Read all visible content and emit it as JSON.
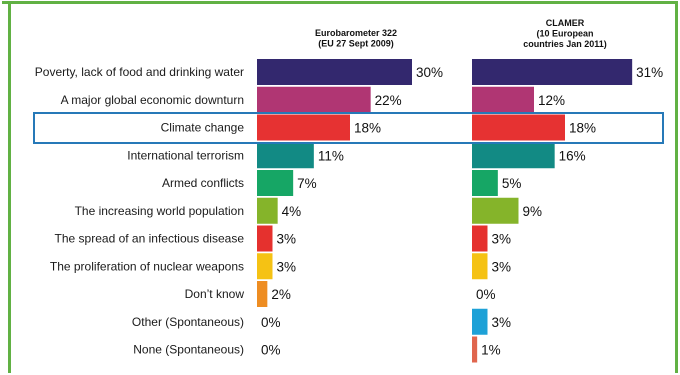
{
  "chart_data": {
    "type": "bar",
    "orientation": "horizontal",
    "categories": [
      "Poverty, lack of food and drinking water",
      "A major global economic downturn",
      "Climate change",
      "International terrorism",
      "Armed conflicts",
      "The increasing world population",
      "The spread of an infectious disease",
      "The proliferation of nuclear weapons",
      "Don’t know",
      "Other (Spontaneous)",
      "None (Spontaneous)"
    ],
    "colors": [
      "#33286e",
      "#b03673",
      "#e63232",
      "#128a84",
      "#16a665",
      "#85b42a",
      "#e5312e",
      "#f5c214",
      "#ee8d22",
      "#1da1d7",
      "#e0664e"
    ],
    "highlight_category": "Climate change",
    "highlight_color": "#2679b8",
    "frame_color": "#61b144",
    "value_suffix": "%",
    "xlim": [
      0,
      31
    ],
    "series": [
      {
        "name_lines": [
          "Eurobarometer 322",
          "(EU 27 Sept 2009)"
        ],
        "values": [
          30,
          22,
          18,
          11,
          7,
          4,
          3,
          3,
          2,
          0,
          0
        ]
      },
      {
        "name_lines": [
          "CLAMER",
          "(10 European",
          "countries Jan 2011)"
        ],
        "values": [
          31,
          12,
          18,
          16,
          5,
          9,
          3,
          3,
          0,
          3,
          1
        ]
      }
    ]
  }
}
